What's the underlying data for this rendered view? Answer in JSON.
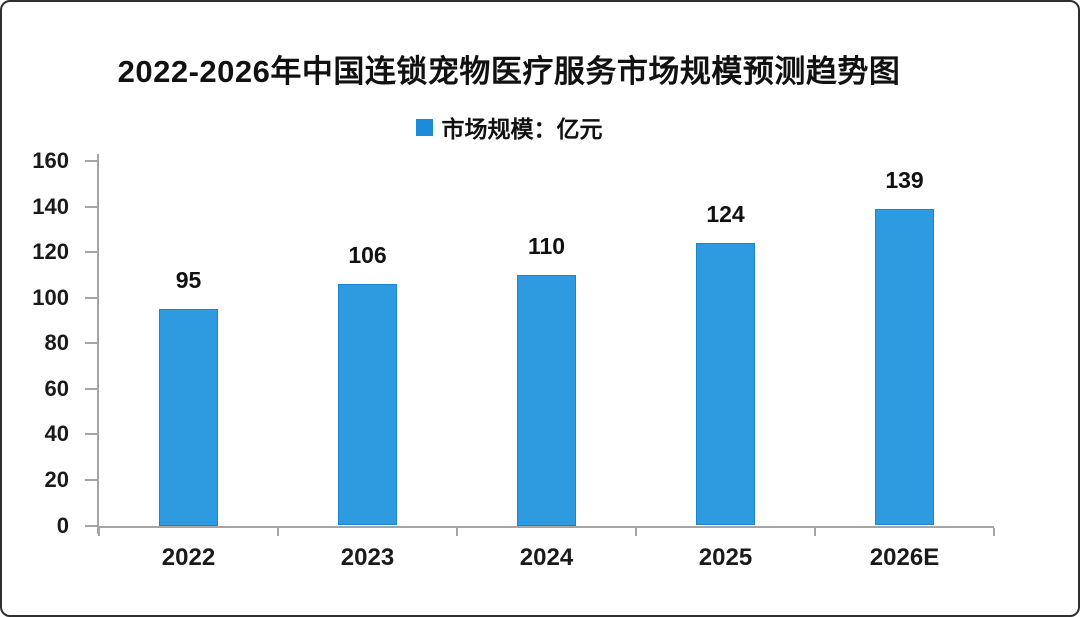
{
  "chart_data": {
    "type": "bar",
    "title": "2022-2026年中国连锁宠物医疗服务市场规模预测趋势图",
    "legend_label": "市场规模：亿元",
    "legend_position": "top-center",
    "categories": [
      "2022",
      "2023",
      "2024",
      "2025",
      "2026E"
    ],
    "values": [
      95,
      106,
      110,
      124,
      139
    ],
    "xlabel": "",
    "ylabel": "",
    "ylim": [
      0,
      160
    ],
    "ytick_step": 20,
    "ytick_labels": [
      "0",
      "20",
      "40",
      "60",
      "80",
      "100",
      "120",
      "140",
      "160"
    ],
    "grid": false,
    "colors": {
      "bar_fill": "#2E9BE0",
      "bar_border": "#1E84C8",
      "legend_swatch": "#1B8BD8",
      "axis": "#A5A5A5",
      "text": "#111111",
      "background": "#FFFFFF",
      "frame_border": "#2F2F2F"
    }
  }
}
